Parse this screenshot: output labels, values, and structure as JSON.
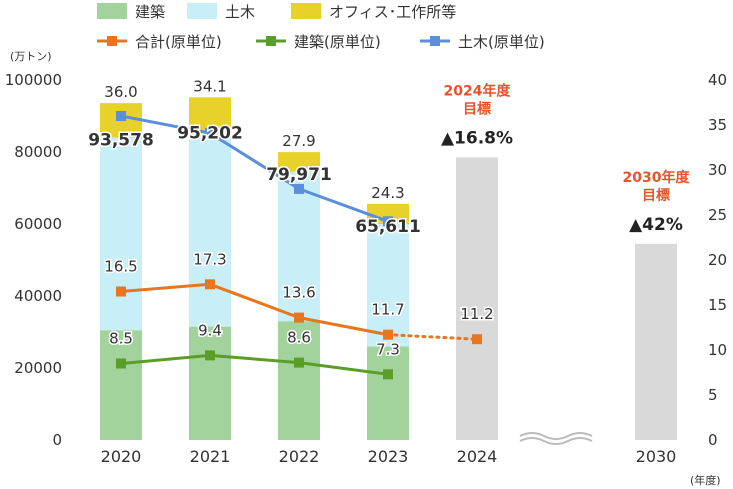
{
  "chart_data": {
    "type": "bar",
    "categories": [
      "2020",
      "2021",
      "2022",
      "2023",
      "2024",
      "2030"
    ],
    "left_unit": "(万トン)",
    "right_unit": "(年度)",
    "left_axis": {
      "min": 0,
      "max": 100000,
      "ticks": [
        0,
        20000,
        40000,
        60000,
        80000,
        100000
      ]
    },
    "right_axis": {
      "min": 0,
      "max": 40,
      "ticks": [
        0,
        5,
        10,
        15,
        20,
        25,
        30,
        35,
        40
      ]
    },
    "stacked_series": [
      {
        "name": "建築",
        "color": "#a3d39c",
        "values": [
          30500,
          31500,
          33000,
          26000,
          null,
          null
        ]
      },
      {
        "name": "土木",
        "color": "#c8eff8",
        "values": [
          53500,
          54500,
          41500,
          34000,
          null,
          null
        ]
      },
      {
        "name": "オフィス･工作所等",
        "color": "#e8d22a",
        "values": [
          9578,
          9202,
          5471,
          5611,
          null,
          null
        ]
      }
    ],
    "totals": [
      "93,578",
      "95,202",
      "79,971",
      "65,611",
      "",
      ""
    ],
    "top_labels": [
      "36.0",
      "34.1",
      "27.9",
      "24.3",
      "",
      ""
    ],
    "target_bars": [
      {
        "category": "2024",
        "value": 78500,
        "color": "#d9d9d9",
        "title_lines": [
          "2024年度",
          "目標"
        ],
        "pct": "▲16.8%"
      },
      {
        "category": "2030",
        "value": 54500,
        "color": "#d9d9d9",
        "title_lines": [
          "2030年度",
          "目標"
        ],
        "pct": "▲42%"
      }
    ],
    "line_series": [
      {
        "name": "合計(原単位)",
        "color": "#e8761e",
        "values": [
          16.5,
          17.3,
          13.6,
          11.7,
          11.2,
          null
        ],
        "labels": [
          "16.5",
          "17.3",
          "13.6",
          "11.7",
          "11.2",
          ""
        ],
        "dotted_from": 3
      },
      {
        "name": "建築(原単位)",
        "color": "#5a9e27",
        "values": [
          8.5,
          9.4,
          8.6,
          7.3,
          null,
          null
        ],
        "labels": [
          "8.5",
          "9.4",
          "8.6",
          "7.3",
          "",
          ""
        ]
      },
      {
        "name": "土木(原単位)",
        "color": "#5b8fdc",
        "values": [
          36.0,
          34.1,
          27.9,
          24.3,
          null,
          null
        ],
        "labels": [
          "",
          "",
          "",
          "",
          "",
          ""
        ]
      }
    ],
    "axis_break": "between-2024-2030",
    "legend_placement": "top"
  }
}
